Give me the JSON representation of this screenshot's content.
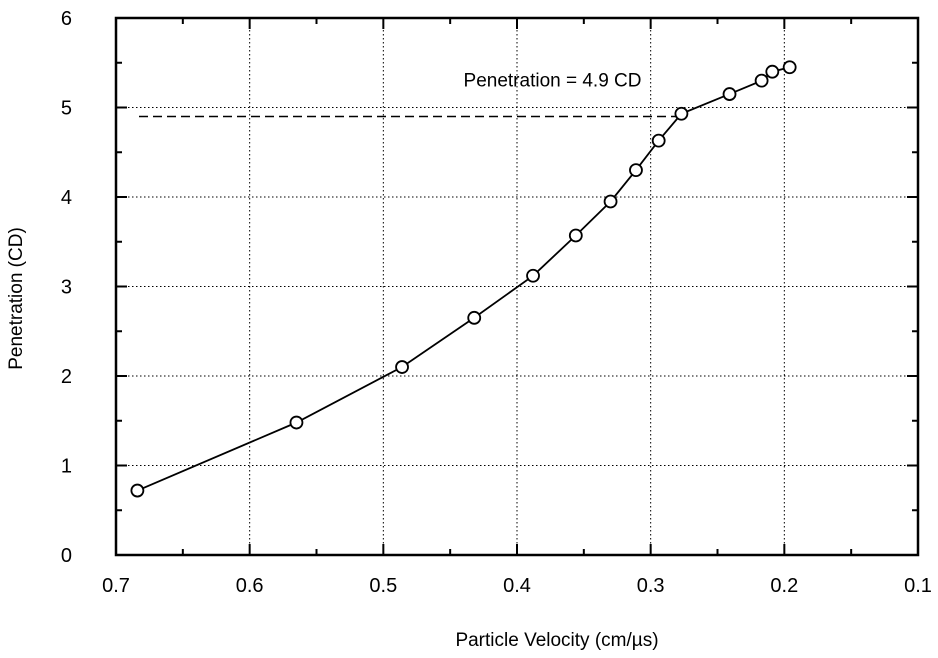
{
  "chart_data": {
    "type": "line",
    "title": "",
    "xlabel": "Particle Velocity (cm/µs)",
    "ylabel": "Penetration (CD)",
    "xlim": [
      0.7,
      0.1
    ],
    "ylim": [
      0,
      6
    ],
    "x_reversed": true,
    "grid": true,
    "x_ticks": [
      0.7,
      0.6,
      0.5,
      0.4,
      0.3,
      0.2,
      0.1
    ],
    "x_tick_labels": [
      "0.7",
      "0.6",
      "0.5",
      "0.4",
      "0.3",
      "0.2",
      "0.1"
    ],
    "y_ticks": [
      0,
      1,
      2,
      3,
      4,
      5,
      6
    ],
    "y_tick_labels": [
      "0",
      "1",
      "2",
      "3",
      "4",
      "5",
      "6"
    ],
    "series": [
      {
        "marker": "open-circle",
        "color": "#000000",
        "x": [
          0.684,
          0.565,
          0.486,
          0.432,
          0.388,
          0.356,
          0.33,
          0.311,
          0.294,
          0.277,
          0.241,
          0.217,
          0.209,
          0.196
        ],
        "y": [
          0.72,
          1.48,
          2.1,
          2.65,
          3.12,
          3.57,
          3.95,
          4.3,
          4.63,
          4.93,
          5.15,
          5.3,
          5.4,
          5.45
        ]
      }
    ],
    "reference_line": {
      "y": 4.9,
      "x_from": 0.7,
      "x_to": 0.277,
      "style": "dashed"
    },
    "annotations": [
      {
        "text": "Penetration = 4.9 CD",
        "x": 0.44,
        "y": 5.2
      }
    ]
  }
}
